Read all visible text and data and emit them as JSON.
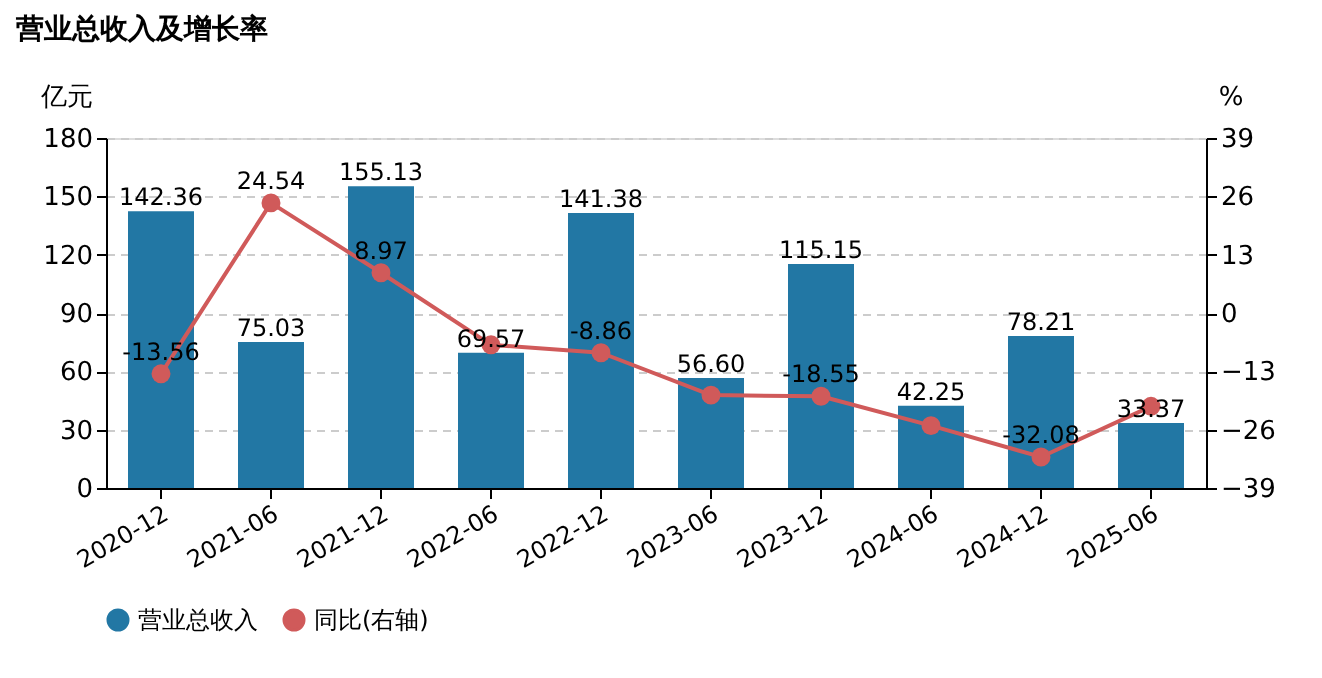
{
  "chart_data": {
    "type": "bar",
    "title": "营业总收入及增长率",
    "categories": [
      "2020-12",
      "2021-06",
      "2021-12",
      "2022-06",
      "2022-12",
      "2023-06",
      "2023-12",
      "2024-06",
      "2024-12",
      "2025-06"
    ],
    "series": [
      {
        "name": "营业总收入",
        "color": "#2277a4",
        "values": [
          142.36,
          75.03,
          155.13,
          69.57,
          141.38,
          56.6,
          115.15,
          42.25,
          78.21,
          33.37
        ],
        "value_labels": [
          "142.36",
          "75.03",
          "155.13",
          "69.57",
          "141.38",
          "56.60",
          "115.15",
          "42.25",
          "78.21",
          "33.37"
        ]
      },
      {
        "name": "同比(右轴)",
        "type": "line",
        "axis": "y2",
        "color": "#d05a5a",
        "marker": "circle",
        "values": [
          -13.56,
          24.54,
          8.97,
          -7.1,
          -8.86,
          -18.3,
          -18.55,
          -25.1,
          -32.08,
          -20.8
        ],
        "value_labels": [
          "-13.56",
          "24.54",
          "8.97",
          null,
          "-8.86",
          null,
          "-18.55",
          null,
          "-32.08",
          null
        ]
      }
    ],
    "ylabel": "亿元",
    "y2label": "%",
    "ylim": [
      0,
      180
    ],
    "yticks": [
      0,
      30,
      60,
      90,
      120,
      150,
      180
    ],
    "y2lim": [
      -39,
      39
    ],
    "y2ticks": [
      -39,
      -26,
      -13,
      0,
      13,
      26,
      39
    ],
    "grid": "y",
    "legend": "bottom"
  }
}
